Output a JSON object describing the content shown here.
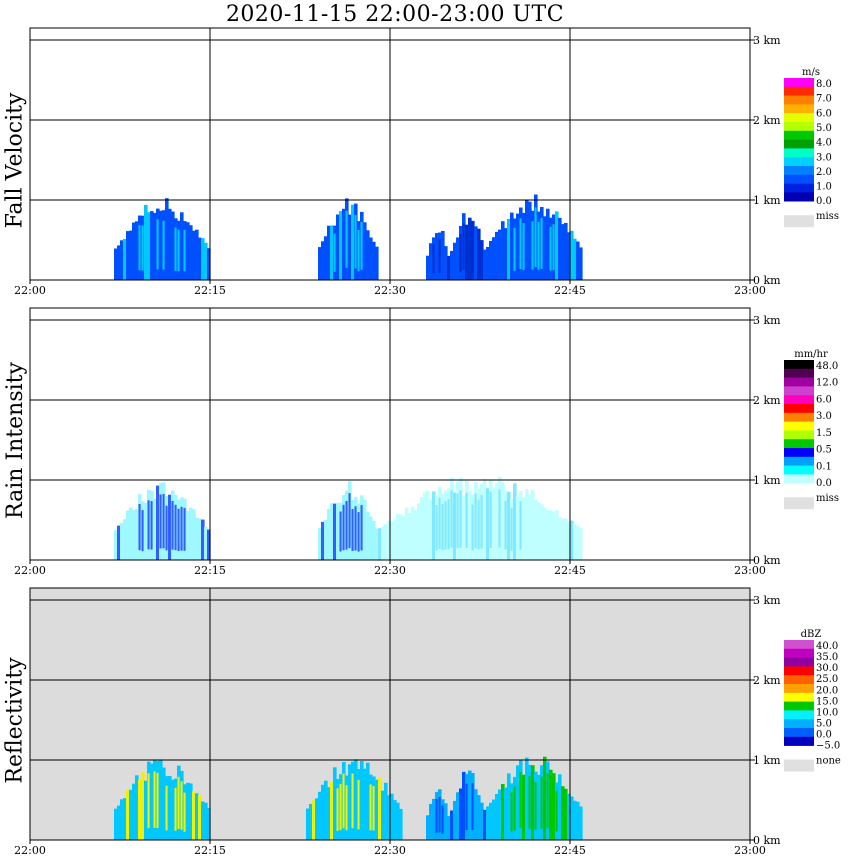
{
  "title": "2020-11-15   22:00-23:00 UTC",
  "chart_data": [
    {
      "type": "heatmap",
      "panel": "Fall Velocity",
      "x_range": [
        "22:00",
        "23:00"
      ],
      "x_ticks": [
        "22:00",
        "22:15",
        "22:30",
        "22:45",
        "23:00"
      ],
      "y_range_km": [
        0,
        3
      ],
      "y_ticks": [
        "0 km",
        "1 km",
        "2 km",
        "3 km"
      ],
      "grid": true,
      "colorbar": {
        "unit": "m/s",
        "labels": [
          "8.0",
          "7.0",
          "6.0",
          "5.0",
          "4.0",
          "3.0",
          "2.0",
          "1.0",
          "0.0"
        ],
        "colors": [
          "#ff00ff",
          "#ff2a00",
          "#ff7f00",
          "#ffb000",
          "#e6ff00",
          "#b4ff00",
          "#00c800",
          "#00a000",
          "#00ffc8",
          "#00d0ff",
          "#0080ff",
          "#0050ff",
          "#0020e0",
          "#0000b0"
        ],
        "missing_label": "miss",
        "missing_color": "#e0e0e0"
      },
      "echoes": [
        {
          "t0": "22:07",
          "t1": "22:15",
          "top_km": 1.05,
          "fill": "#0050ff",
          "core": "#00c8ff"
        },
        {
          "t0": "22:24",
          "t1": "22:29",
          "top_km": 1.05,
          "fill": "#0050ff",
          "core": "#00c8ff"
        },
        {
          "t0": "22:33",
          "t1": "22:35",
          "top_km": 0.7,
          "fill": "#0050ff",
          "core": "#0030d0"
        },
        {
          "t0": "22:35",
          "t1": "22:38",
          "top_km": 0.9,
          "fill": "#0050ff",
          "core": "#0030d0"
        },
        {
          "t0": "22:38",
          "t1": "22:46",
          "top_km": 1.1,
          "fill": "#0050ff",
          "core": "#00c8ff"
        }
      ]
    },
    {
      "type": "heatmap",
      "panel": "Rain Intensity",
      "x_range": [
        "22:00",
        "23:00"
      ],
      "x_ticks": [
        "22:00",
        "22:15",
        "22:30",
        "22:45",
        "23:00"
      ],
      "y_range_km": [
        0,
        3
      ],
      "y_ticks": [
        "0 km",
        "1 km",
        "2 km",
        "3 km"
      ],
      "grid": true,
      "colorbar": {
        "unit": "mm/hr",
        "labels": [
          "48.0",
          "12.0",
          "6.0",
          "3.0",
          "1.5",
          "0.5",
          "0.1",
          "0.0"
        ],
        "colors": [
          "#000000",
          "#500050",
          "#a000a0",
          "#d040d0",
          "#ff00c0",
          "#ff0000",
          "#ff7f00",
          "#ffff00",
          "#b0ff00",
          "#00c800",
          "#0000ff",
          "#00a0ff",
          "#00ffff",
          "#c0ffff"
        ],
        "missing_label": "miss",
        "missing_color": "#e0e0e0"
      },
      "echoes": [
        {
          "t0": "22:07",
          "t1": "22:15",
          "top_km": 1.0,
          "fill": "#a0f8ff",
          "core": "#3060ff"
        },
        {
          "t0": "22:24",
          "t1": "22:29",
          "top_km": 1.0,
          "fill": "#a0f8ff",
          "core": "#3060ff"
        },
        {
          "t0": "22:29",
          "t1": "22:46",
          "top_km": 1.1,
          "fill": "#c0ffff",
          "core": "#80e8ff"
        }
      ]
    },
    {
      "type": "heatmap",
      "panel": "Reflectivity",
      "x_range": [
        "22:00",
        "23:00"
      ],
      "x_ticks": [
        "22:00",
        "22:15",
        "22:30",
        "22:45",
        "23:00"
      ],
      "y_range_km": [
        0,
        3
      ],
      "y_ticks": [
        "0 km",
        "1 km",
        "2 km",
        "3 km"
      ],
      "grid": true,
      "colorbar": {
        "unit": "dBZ",
        "labels": [
          "40.0",
          "35.0",
          "30.0",
          "25.0",
          "20.0",
          "15.0",
          "10.0",
          "5.0",
          "0.0",
          "−5.0"
        ],
        "colors": [
          "#d050d0",
          "#c000c0",
          "#9000a0",
          "#ff0000",
          "#ff6000",
          "#ffa000",
          "#ffff00",
          "#00c800",
          "#00f0ff",
          "#00b0ff",
          "#0060ff",
          "#0000c0"
        ],
        "missing_label": "none",
        "missing_color": "#e0e0e0"
      },
      "background": "#dcdcdc",
      "echoes": [
        {
          "t0": "22:07",
          "t1": "22:15",
          "top_km": 1.05,
          "fill": "#00c8ff",
          "core": "#f0f000"
        },
        {
          "t0": "22:23",
          "t1": "22:31",
          "top_km": 1.05,
          "fill": "#00c8ff",
          "core": "#f0f000"
        },
        {
          "t0": "22:33",
          "t1": "22:35",
          "top_km": 0.7,
          "fill": "#00b0ff",
          "core": "#0050ff"
        },
        {
          "t0": "22:35",
          "t1": "22:38",
          "top_km": 0.9,
          "fill": "#00b0ff",
          "core": "#0050ff"
        },
        {
          "t0": "22:38",
          "t1": "22:46",
          "top_km": 1.1,
          "fill": "#00c8ff",
          "core": "#00c800"
        }
      ]
    }
  ]
}
